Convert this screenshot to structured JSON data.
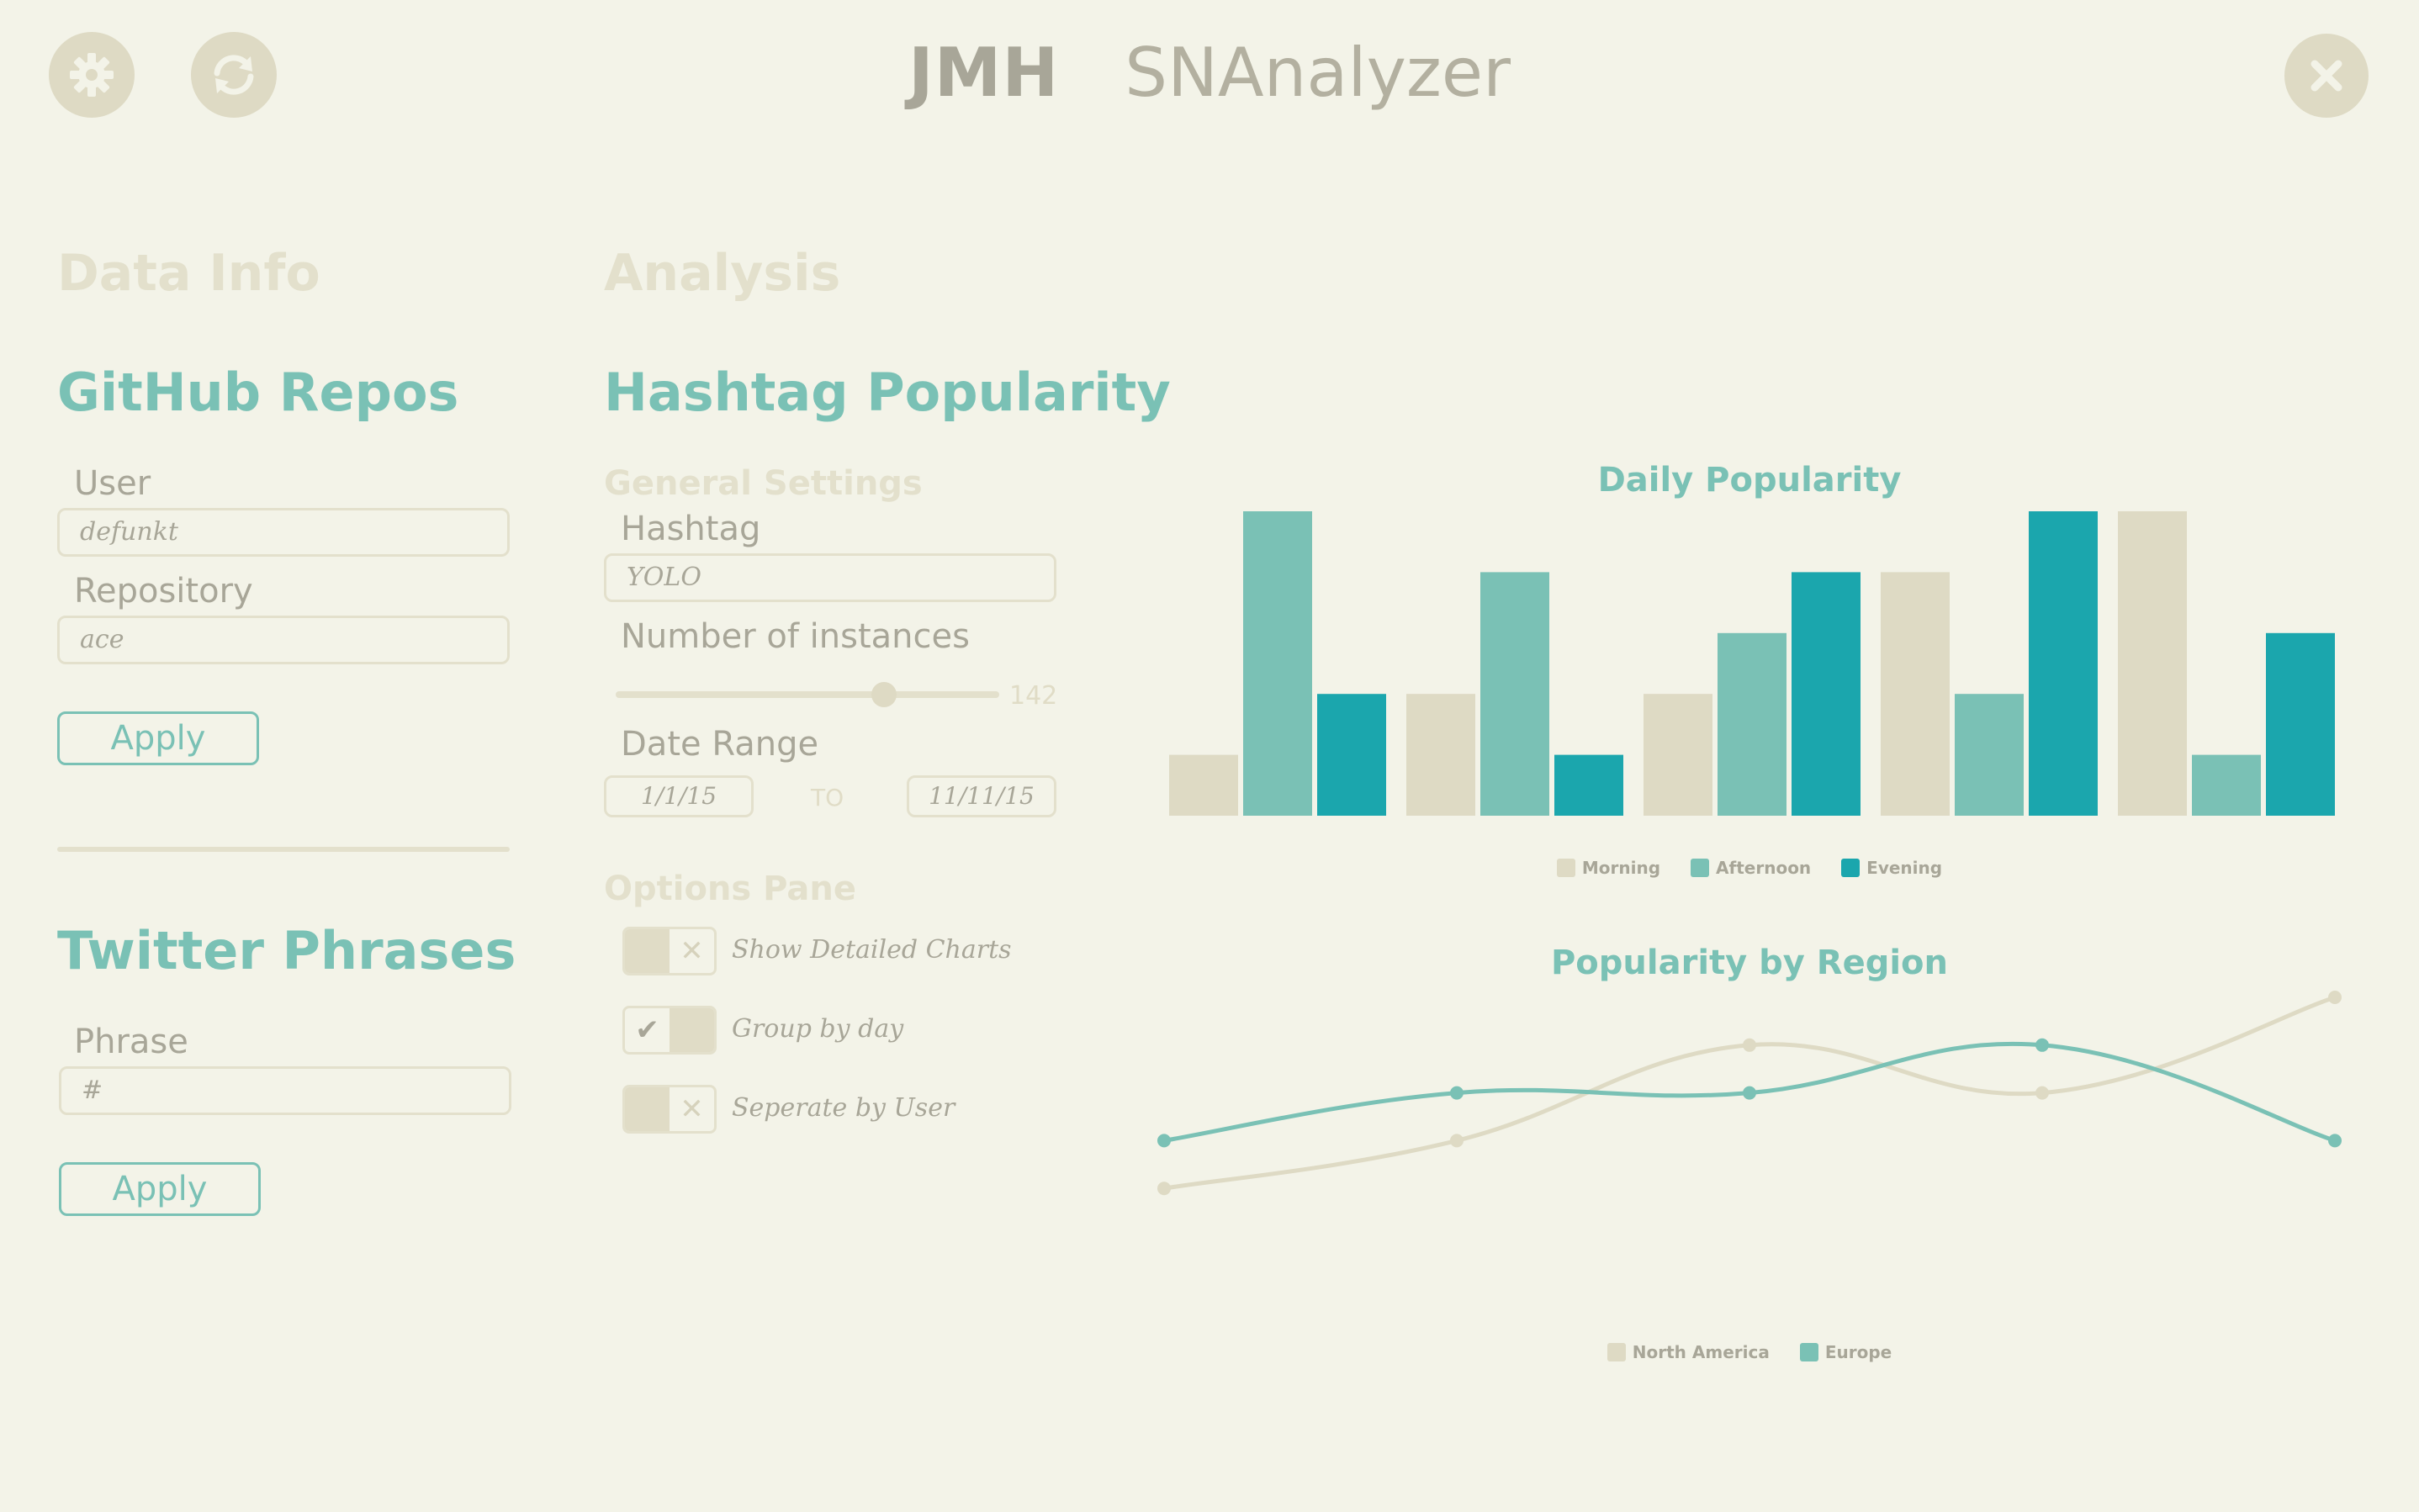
{
  "header": {
    "logo": "JMH",
    "app_name": "SNAnalyzer",
    "settings_icon": "gear-icon",
    "refresh_icon": "refresh-icon",
    "close_icon": "close-icon"
  },
  "data_info": {
    "section_title": "Data Info",
    "github": {
      "title": "GitHub Repos",
      "user_label": "User",
      "user_value": "defunkt",
      "repo_label": "Repository",
      "repo_value": "ace",
      "apply_label": "Apply"
    },
    "twitter": {
      "title": "Twitter Phrases",
      "phrase_label": "Phrase",
      "phrase_value": "#",
      "apply_label": "Apply"
    }
  },
  "analysis": {
    "section_title": "Analysis",
    "panel_title": "Hashtag Popularity",
    "general_settings": {
      "title": "General Settings",
      "hashtag_label": "Hashtag",
      "hashtag_value": "YOLO",
      "instances_label": "Number of instances",
      "instances_value": "142",
      "instances_fraction": 0.7,
      "date_range_label": "Date Range",
      "date_from": "1/1/15",
      "date_to_label": "TO",
      "date_to": "11/11/15"
    },
    "options": {
      "title": "Options Pane",
      "items": [
        {
          "label": "Show Detailed Charts",
          "on": false
        },
        {
          "label": "Group by day",
          "on": true
        },
        {
          "label": "Seperate by User",
          "on": false
        }
      ]
    }
  },
  "colors": {
    "morning": "#dedac4",
    "afternoon": "#7ac1b5",
    "evening": "#1ba6ad",
    "north_america": "#dedac4",
    "europe": "#7ac1b5"
  },
  "chart_data": [
    {
      "type": "bar",
      "title": "Daily Popularity",
      "categories": [
        "",
        "",
        "",
        "",
        ""
      ],
      "ylim": [
        0,
        5
      ],
      "series": [
        {
          "name": "Morning",
          "values": [
            1,
            2,
            2,
            4,
            5
          ]
        },
        {
          "name": "Afternoon",
          "values": [
            5,
            4,
            3,
            2,
            1
          ]
        },
        {
          "name": "Evening",
          "values": [
            2,
            1,
            4,
            5,
            3
          ]
        }
      ],
      "legend": "bottom-center",
      "grid": false
    },
    {
      "type": "line",
      "title": "Popularity by Region",
      "x": [
        1,
        2,
        3,
        4,
        5
      ],
      "ylim": [
        0,
        5
      ],
      "series": [
        {
          "name": "North America",
          "values": [
            1,
            2,
            4,
            3,
            5
          ]
        },
        {
          "name": "Europe",
          "values": [
            2,
            3,
            3,
            4,
            2
          ]
        }
      ],
      "legend": "bottom-center",
      "grid": false
    }
  ]
}
